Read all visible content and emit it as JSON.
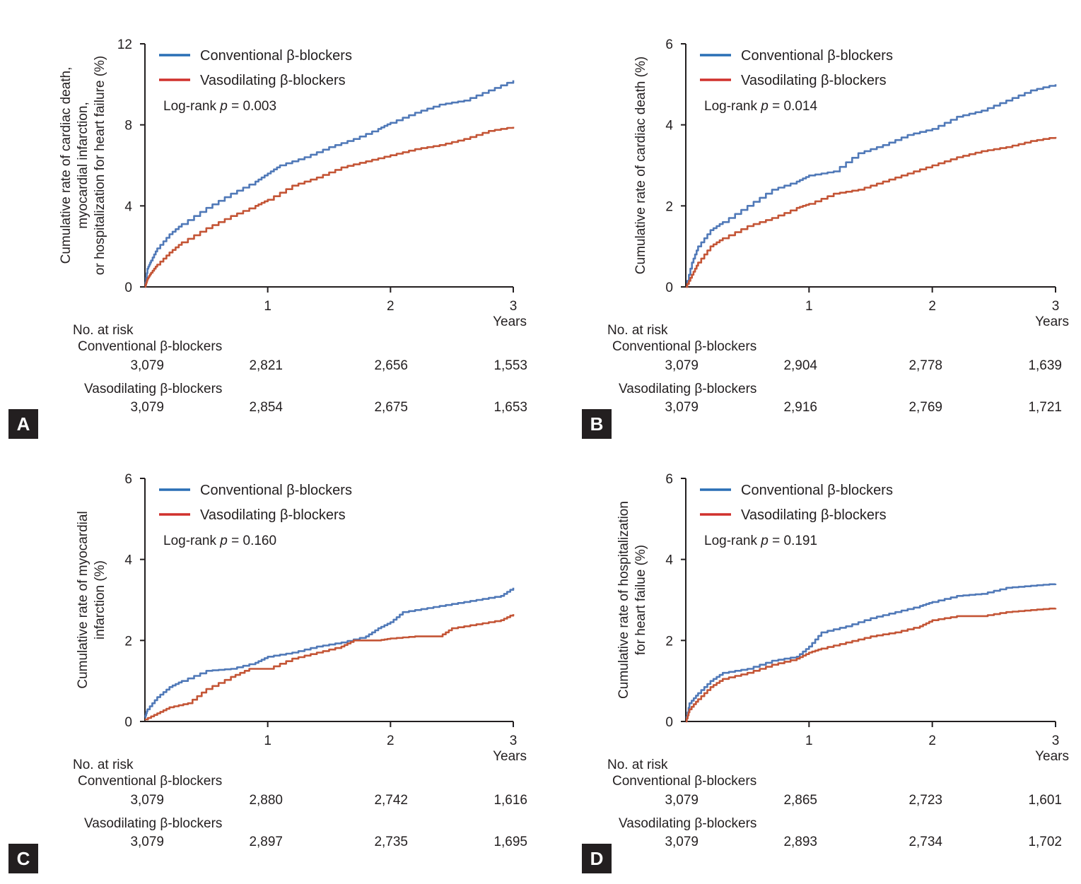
{
  "colors": {
    "conventional": "#5079b8",
    "vasodilating": "#c45536",
    "legend_conventional": "#2a6fb5",
    "legend_vasodilating": "#d0312d",
    "axis": "#231f20"
  },
  "common": {
    "x_unit_label": "Years",
    "legend_conventional": "Conventional β-blockers",
    "legend_vasodilating": "Vasodilating β-blockers",
    "risk_header": "No. at risk",
    "risk_conventional_label": "Conventional β-blockers",
    "risk_vasodilating_label": "Vasodilating β-blockers"
  },
  "chart_data": [
    {
      "panel": "A",
      "type": "line",
      "ylabel_lines": [
        "Cumulative rate of cardiac death,",
        "myocardial infarction,",
        "or hospitalization for heart failure (%)"
      ],
      "xlabel": "Years",
      "xlim": [
        0,
        3
      ],
      "ylim": [
        0,
        12
      ],
      "x_ticks": [
        "1",
        "2",
        "3"
      ],
      "y_ticks": [
        "0",
        "4",
        "8",
        "12"
      ],
      "logrank_prefix": "Log-rank ",
      "logrank_p": "p",
      "logrank_value": " = 0.003",
      "series": [
        {
          "name": "Conventional β-blockers",
          "points": [
            [
              0,
              0
            ],
            [
              0.02,
              0.9
            ],
            [
              0.05,
              1.3
            ],
            [
              0.1,
              1.9
            ],
            [
              0.2,
              2.6
            ],
            [
              0.3,
              3.1
            ],
            [
              0.5,
              3.9
            ],
            [
              0.7,
              4.6
            ],
            [
              0.9,
              5.2
            ],
            [
              1.0,
              5.6
            ],
            [
              1.1,
              6.0
            ],
            [
              1.3,
              6.4
            ],
            [
              1.5,
              6.9
            ],
            [
              1.7,
              7.3
            ],
            [
              1.9,
              7.8
            ],
            [
              2.0,
              8.1
            ],
            [
              2.2,
              8.6
            ],
            [
              2.4,
              9.0
            ],
            [
              2.6,
              9.2
            ],
            [
              2.8,
              9.7
            ],
            [
              3.0,
              10.2
            ]
          ]
        },
        {
          "name": "Vasodilating β-blockers",
          "points": [
            [
              0,
              0
            ],
            [
              0.02,
              0.4
            ],
            [
              0.05,
              0.7
            ],
            [
              0.1,
              1.1
            ],
            [
              0.2,
              1.7
            ],
            [
              0.3,
              2.2
            ],
            [
              0.5,
              2.9
            ],
            [
              0.7,
              3.5
            ],
            [
              0.9,
              4.0
            ],
            [
              1.0,
              4.3
            ],
            [
              1.2,
              5.0
            ],
            [
              1.4,
              5.4
            ],
            [
              1.6,
              5.9
            ],
            [
              1.8,
              6.2
            ],
            [
              2.0,
              6.5
            ],
            [
              2.2,
              6.8
            ],
            [
              2.4,
              7.0
            ],
            [
              2.6,
              7.3
            ],
            [
              2.8,
              7.7
            ],
            [
              3.0,
              7.9
            ]
          ]
        }
      ],
      "risk_conventional": [
        "3,079",
        "2,821",
        "2,656",
        "1,553"
      ],
      "risk_vasodilating": [
        "3,079",
        "2,854",
        "2,675",
        "1,653"
      ]
    },
    {
      "panel": "B",
      "type": "line",
      "ylabel_lines": [
        "Cumulative rate of cardiac death (%)"
      ],
      "xlabel": "Years",
      "xlim": [
        0,
        3
      ],
      "ylim": [
        0,
        6
      ],
      "x_ticks": [
        "1",
        "2",
        "3"
      ],
      "y_ticks": [
        "0",
        "2",
        "4",
        "6"
      ],
      "logrank_prefix": "Log-rank ",
      "logrank_p": "p",
      "logrank_value": " = 0.014",
      "series": [
        {
          "name": "Conventional β-blockers",
          "points": [
            [
              0,
              0
            ],
            [
              0.05,
              0.6
            ],
            [
              0.1,
              1.0
            ],
            [
              0.2,
              1.4
            ],
            [
              0.3,
              1.6
            ],
            [
              0.5,
              2.0
            ],
            [
              0.7,
              2.4
            ],
            [
              0.9,
              2.6
            ],
            [
              1.0,
              2.75
            ],
            [
              1.2,
              2.85
            ],
            [
              1.4,
              3.3
            ],
            [
              1.6,
              3.5
            ],
            [
              1.8,
              3.75
            ],
            [
              2.0,
              3.9
            ],
            [
              2.2,
              4.2
            ],
            [
              2.4,
              4.35
            ],
            [
              2.6,
              4.6
            ],
            [
              2.8,
              4.85
            ],
            [
              3.0,
              5.0
            ]
          ]
        },
        {
          "name": "Vasodilating β-blockers",
          "points": [
            [
              0,
              0
            ],
            [
              0.05,
              0.3
            ],
            [
              0.1,
              0.6
            ],
            [
              0.2,
              1.0
            ],
            [
              0.3,
              1.2
            ],
            [
              0.5,
              1.5
            ],
            [
              0.7,
              1.7
            ],
            [
              0.9,
              1.95
            ],
            [
              1.0,
              2.05
            ],
            [
              1.2,
              2.3
            ],
            [
              1.4,
              2.4
            ],
            [
              1.6,
              2.6
            ],
            [
              1.8,
              2.8
            ],
            [
              2.0,
              3.0
            ],
            [
              2.2,
              3.2
            ],
            [
              2.4,
              3.35
            ],
            [
              2.6,
              3.45
            ],
            [
              2.8,
              3.6
            ],
            [
              3.0,
              3.7
            ]
          ]
        }
      ],
      "risk_conventional": [
        "3,079",
        "2,904",
        "2,778",
        "1,639"
      ],
      "risk_vasodilating": [
        "3,079",
        "2,916",
        "2,769",
        "1,721"
      ]
    },
    {
      "panel": "C",
      "type": "line",
      "ylabel_lines": [
        "Cumulative rate of myocardial",
        "infarction (%)"
      ],
      "xlabel": "Years",
      "xlim": [
        0,
        3
      ],
      "ylim": [
        0,
        6
      ],
      "x_ticks": [
        "1",
        "2",
        "3"
      ],
      "y_ticks": [
        "0",
        "2",
        "4",
        "6"
      ],
      "logrank_prefix": "Log-rank ",
      "logrank_p": "p",
      "logrank_value": " = 0.160",
      "series": [
        {
          "name": "Conventional β-blockers",
          "points": [
            [
              0,
              0.1
            ],
            [
              0.02,
              0.3
            ],
            [
              0.1,
              0.6
            ],
            [
              0.2,
              0.85
            ],
            [
              0.3,
              1.0
            ],
            [
              0.5,
              1.25
            ],
            [
              0.7,
              1.3
            ],
            [
              0.9,
              1.45
            ],
            [
              1.0,
              1.6
            ],
            [
              1.2,
              1.7
            ],
            [
              1.4,
              1.85
            ],
            [
              1.6,
              1.95
            ],
            [
              1.8,
              2.1
            ],
            [
              1.9,
              2.3
            ],
            [
              2.0,
              2.45
            ],
            [
              2.1,
              2.7
            ],
            [
              2.3,
              2.8
            ],
            [
              2.5,
              2.9
            ],
            [
              2.7,
              3.0
            ],
            [
              2.9,
              3.1
            ],
            [
              3.0,
              3.3
            ]
          ]
        },
        {
          "name": "Vasodilating β-blockers",
          "points": [
            [
              0,
              0.05
            ],
            [
              0.1,
              0.2
            ],
            [
              0.2,
              0.35
            ],
            [
              0.35,
              0.45
            ],
            [
              0.5,
              0.8
            ],
            [
              0.7,
              1.1
            ],
            [
              0.85,
              1.3
            ],
            [
              1.0,
              1.3
            ],
            [
              1.2,
              1.55
            ],
            [
              1.4,
              1.7
            ],
            [
              1.6,
              1.85
            ],
            [
              1.7,
              2.0
            ],
            [
              1.9,
              2.0
            ],
            [
              2.0,
              2.05
            ],
            [
              2.2,
              2.1
            ],
            [
              2.4,
              2.1
            ],
            [
              2.5,
              2.3
            ],
            [
              2.7,
              2.4
            ],
            [
              2.9,
              2.5
            ],
            [
              3.0,
              2.65
            ]
          ]
        }
      ],
      "risk_conventional": [
        "3,079",
        "2,880",
        "2,742",
        "1,616"
      ],
      "risk_vasodilating": [
        "3,079",
        "2,897",
        "2,735",
        "1,695"
      ]
    },
    {
      "panel": "D",
      "type": "line",
      "ylabel_lines": [
        "Cumulative rate of hospitalization",
        "for heart failue (%)"
      ],
      "xlabel": "Years",
      "xlim": [
        0,
        3
      ],
      "ylim": [
        0,
        6
      ],
      "x_ticks": [
        "1",
        "2",
        "3"
      ],
      "y_ticks": [
        "0",
        "2",
        "4",
        "6"
      ],
      "logrank_prefix": "Log-rank ",
      "logrank_p": "p",
      "logrank_value": " = 0.191",
      "series": [
        {
          "name": "Conventional β-blockers",
          "points": [
            [
              0,
              0
            ],
            [
              0.03,
              0.45
            ],
            [
              0.1,
              0.7
            ],
            [
              0.2,
              1.0
            ],
            [
              0.3,
              1.2
            ],
            [
              0.5,
              1.3
            ],
            [
              0.7,
              1.5
            ],
            [
              0.9,
              1.6
            ],
            [
              1.0,
              1.85
            ],
            [
              1.1,
              2.2
            ],
            [
              1.3,
              2.35
            ],
            [
              1.5,
              2.55
            ],
            [
              1.7,
              2.7
            ],
            [
              1.9,
              2.85
            ],
            [
              2.0,
              2.95
            ],
            [
              2.2,
              3.1
            ],
            [
              2.4,
              3.15
            ],
            [
              2.6,
              3.3
            ],
            [
              2.8,
              3.35
            ],
            [
              3.0,
              3.4
            ]
          ]
        },
        {
          "name": "Vasodilating β-blockers",
          "points": [
            [
              0,
              0
            ],
            [
              0.03,
              0.3
            ],
            [
              0.1,
              0.55
            ],
            [
              0.2,
              0.85
            ],
            [
              0.3,
              1.05
            ],
            [
              0.5,
              1.2
            ],
            [
              0.7,
              1.4
            ],
            [
              0.9,
              1.55
            ],
            [
              1.0,
              1.7
            ],
            [
              1.1,
              1.8
            ],
            [
              1.3,
              1.95
            ],
            [
              1.5,
              2.1
            ],
            [
              1.7,
              2.2
            ],
            [
              1.9,
              2.35
            ],
            [
              2.0,
              2.5
            ],
            [
              2.2,
              2.6
            ],
            [
              2.4,
              2.6
            ],
            [
              2.6,
              2.7
            ],
            [
              2.8,
              2.75
            ],
            [
              3.0,
              2.8
            ]
          ]
        }
      ],
      "risk_conventional": [
        "3,079",
        "2,865",
        "2,723",
        "1,601"
      ],
      "risk_vasodilating": [
        "3,079",
        "2,893",
        "2,734",
        "1,702"
      ]
    }
  ]
}
